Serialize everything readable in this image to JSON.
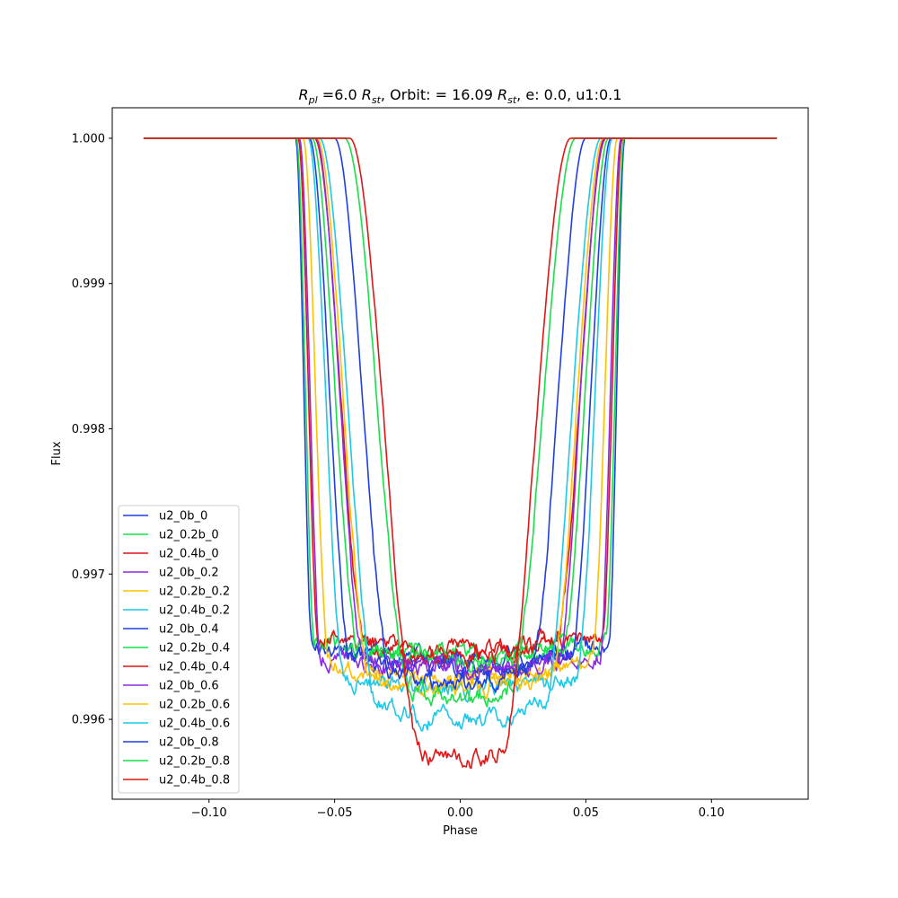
{
  "chart_data": {
    "type": "line",
    "title_parts": {
      "r_main": "R",
      "r_sub": "pl",
      "mid1": " =6.0 ",
      "rst_main": "R",
      "rst_sub": "st",
      "mid2": ", Orbit: = 16.09 ",
      "rst2_main": "R",
      "rst2_sub": "st",
      "tail": ", e: 0.0, u1:0.1"
    },
    "xlabel": "Phase",
    "ylabel": "Flux",
    "xlim": [
      -0.1385,
      0.1385
    ],
    "ylim": [
      0.99545,
      1.00021
    ],
    "xticks": [
      -0.1,
      -0.05,
      0.0,
      0.05,
      0.1
    ],
    "xtick_labels": [
      "−0.10",
      "−0.05",
      "0.00",
      "0.05",
      "0.10"
    ],
    "yticks": [
      0.996,
      0.997,
      0.998,
      0.999,
      1.0
    ],
    "ytick_labels": [
      "0.996",
      "0.997",
      "0.998",
      "0.999",
      "1.000"
    ],
    "x_range": [
      -0.126,
      0.126
    ],
    "legend_position": "lower-left",
    "grid": false,
    "series": [
      {
        "name": "u2_0b_0",
        "color": "#1f3fe0",
        "t_start": -0.0655,
        "t_end": 0.0655,
        "ingress": 0.0065,
        "depth": 0.003572,
        "limb": 0.00015
      },
      {
        "name": "u2_0.2b_0",
        "color": "#17e04a",
        "t_start": -0.0652,
        "t_end": 0.0652,
        "ingress": 0.0072,
        "depth": 0.003556,
        "limb": 0.00018
      },
      {
        "name": "u2_0.4b_0",
        "color": "#e01616",
        "t_start": -0.0645,
        "t_end": 0.0645,
        "ingress": 0.008,
        "depth": 0.003521,
        "limb": 0.0002
      },
      {
        "name": "u2_0b_0.2",
        "color": "#8a2be2",
        "t_start": -0.064,
        "t_end": 0.064,
        "ingress": 0.0085,
        "depth": 0.00364,
        "limb": 0.00018
      },
      {
        "name": "u2_0.2b_0.2",
        "color": "#ffc000",
        "t_start": -0.0625,
        "t_end": 0.0625,
        "ingress": 0.01,
        "depth": 0.0037,
        "limb": 0.0002
      },
      {
        "name": "u2_0.4b_0.2",
        "color": "#1ec8e6",
        "t_start": -0.0605,
        "t_end": 0.0605,
        "ingress": 0.014,
        "depth": 0.00378,
        "limb": 0.00025
      },
      {
        "name": "u2_0b_0.4",
        "color": "#1f3fe0",
        "t_start": -0.06,
        "t_end": 0.06,
        "ingress": 0.016,
        "depth": 0.00365,
        "limb": 0.0003
      },
      {
        "name": "u2_0.2b_0.4",
        "color": "#17e04a",
        "t_start": -0.059,
        "t_end": 0.059,
        "ingress": 0.018,
        "depth": 0.00358,
        "limb": 0.0004
      },
      {
        "name": "u2_0.4b_0.4",
        "color": "#e01616",
        "t_start": -0.058,
        "t_end": 0.058,
        "ingress": 0.02,
        "depth": 0.00356,
        "limb": 0.0005
      },
      {
        "name": "u2_0b_0.6",
        "color": "#8a2be2",
        "t_start": -0.0575,
        "t_end": 0.0575,
        "ingress": 0.019,
        "depth": 0.00365,
        "limb": 0.0003
      },
      {
        "name": "u2_0.2b_0.6",
        "color": "#ffc000",
        "t_start": -0.057,
        "t_end": 0.057,
        "ingress": 0.021,
        "depth": 0.00378,
        "limb": 0.0004
      },
      {
        "name": "u2_0.4b_0.6",
        "color": "#1ec8e6",
        "t_start": -0.056,
        "t_end": 0.056,
        "ingress": 0.023,
        "depth": 0.00401,
        "limb": 0.0006
      },
      {
        "name": "u2_0b_0.8",
        "color": "#1f3fe0",
        "t_start": -0.05,
        "t_end": 0.05,
        "ingress": 0.022,
        "depth": 0.00374,
        "limb": 0.0005
      },
      {
        "name": "u2_0.2b_0.8",
        "color": "#17e04a",
        "t_start": -0.046,
        "t_end": 0.046,
        "ingress": 0.026,
        "depth": 0.00386,
        "limb": 0.0007
      },
      {
        "name": "u2_0.4b_0.8",
        "color": "#e01616",
        "t_start": -0.044,
        "t_end": 0.044,
        "ingress": 0.028,
        "depth": 0.00429,
        "limb": 0.0009
      }
    ]
  }
}
